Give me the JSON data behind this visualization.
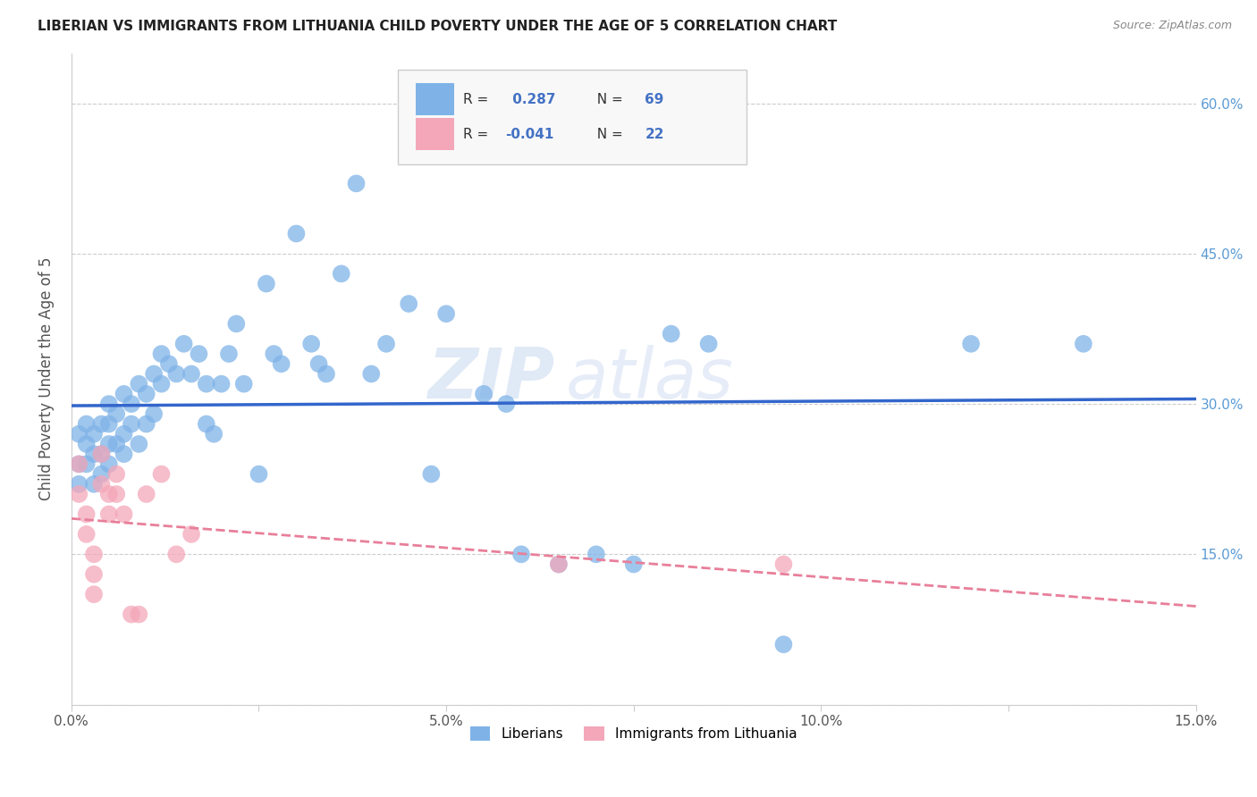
{
  "title": "LIBERIAN VS IMMIGRANTS FROM LITHUANIA CHILD POVERTY UNDER THE AGE OF 5 CORRELATION CHART",
  "source": "Source: ZipAtlas.com",
  "ylabel": "Child Poverty Under the Age of 5",
  "xlim": [
    0.0,
    0.15
  ],
  "ylim": [
    0.0,
    0.65
  ],
  "xtick_vals": [
    0.0,
    0.025,
    0.05,
    0.075,
    0.1,
    0.125,
    0.15
  ],
  "xtick_labels": [
    "0.0%",
    "",
    "5.0%",
    "",
    "10.0%",
    "",
    "15.0%"
  ],
  "ytick_vals": [
    0.0,
    0.15,
    0.3,
    0.45,
    0.6
  ],
  "ytick_labels_right": [
    "",
    "15.0%",
    "30.0%",
    "45.0%",
    "60.0%"
  ],
  "grid_color": "#cccccc",
  "bg_color": "#ffffff",
  "lib_color": "#7fb3e8",
  "lit_color": "#f4a7b9",
  "lib_line_color": "#3366cc",
  "lit_line_color": "#e87f9a",
  "R_lib": 0.287,
  "N_lib": 69,
  "R_lit": -0.041,
  "N_lit": 22,
  "watermark": "ZIPatlas",
  "lib_x": [
    0.001,
    0.001,
    0.001,
    0.002,
    0.002,
    0.002,
    0.003,
    0.003,
    0.003,
    0.004,
    0.004,
    0.004,
    0.005,
    0.005,
    0.005,
    0.005,
    0.006,
    0.006,
    0.007,
    0.007,
    0.007,
    0.008,
    0.008,
    0.009,
    0.009,
    0.01,
    0.01,
    0.011,
    0.011,
    0.012,
    0.012,
    0.013,
    0.014,
    0.015,
    0.016,
    0.017,
    0.018,
    0.018,
    0.019,
    0.02,
    0.021,
    0.022,
    0.023,
    0.025,
    0.026,
    0.027,
    0.028,
    0.03,
    0.032,
    0.033,
    0.034,
    0.036,
    0.038,
    0.04,
    0.042,
    0.045,
    0.048,
    0.05,
    0.055,
    0.058,
    0.06,
    0.065,
    0.07,
    0.075,
    0.08,
    0.085,
    0.095,
    0.12,
    0.135
  ],
  "lib_y": [
    0.24,
    0.22,
    0.27,
    0.26,
    0.28,
    0.24,
    0.25,
    0.27,
    0.22,
    0.28,
    0.25,
    0.23,
    0.3,
    0.28,
    0.26,
    0.24,
    0.29,
    0.26,
    0.31,
    0.27,
    0.25,
    0.3,
    0.28,
    0.32,
    0.26,
    0.31,
    0.28,
    0.33,
    0.29,
    0.35,
    0.32,
    0.34,
    0.33,
    0.36,
    0.33,
    0.35,
    0.32,
    0.28,
    0.27,
    0.32,
    0.35,
    0.38,
    0.32,
    0.23,
    0.42,
    0.35,
    0.34,
    0.47,
    0.36,
    0.34,
    0.33,
    0.43,
    0.52,
    0.33,
    0.36,
    0.4,
    0.23,
    0.39,
    0.31,
    0.3,
    0.15,
    0.14,
    0.15,
    0.14,
    0.37,
    0.36,
    0.06,
    0.36,
    0.36
  ],
  "lit_x": [
    0.001,
    0.001,
    0.002,
    0.002,
    0.003,
    0.003,
    0.003,
    0.004,
    0.004,
    0.005,
    0.005,
    0.006,
    0.006,
    0.007,
    0.008,
    0.009,
    0.01,
    0.012,
    0.014,
    0.016,
    0.065,
    0.095
  ],
  "lit_y": [
    0.24,
    0.21,
    0.19,
    0.17,
    0.15,
    0.13,
    0.11,
    0.25,
    0.22,
    0.21,
    0.19,
    0.23,
    0.21,
    0.19,
    0.09,
    0.09,
    0.21,
    0.23,
    0.15,
    0.17,
    0.14,
    0.14
  ]
}
